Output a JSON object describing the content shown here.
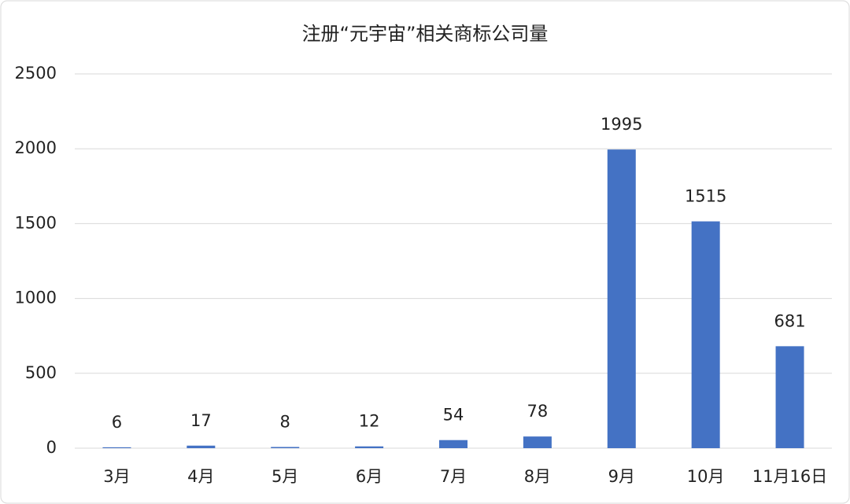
{
  "chart_data": {
    "type": "bar",
    "title": "注册“元宇宙”相关商标公司量",
    "categories": [
      "3月",
      "4月",
      "5月",
      "6月",
      "7月",
      "8月",
      "9月",
      "10月",
      "11月16日"
    ],
    "values": [
      6,
      17,
      8,
      12,
      54,
      78,
      1995,
      1515,
      681
    ],
    "color": "#4472c4",
    "ylim": [
      0,
      2500
    ],
    "yticks": [
      0,
      500,
      1000,
      1500,
      2000,
      2500
    ],
    "grid": true
  }
}
